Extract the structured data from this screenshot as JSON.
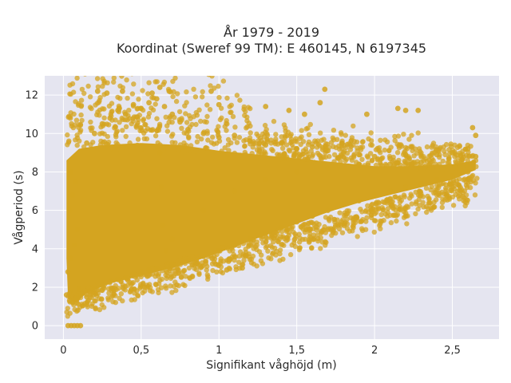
{
  "chart_data": {
    "type": "scatter",
    "title": [
      "År 1979 - 2019",
      "Koordinat (Sweref 99 TM): E 460145, N 6197345"
    ],
    "xlabel": "Signifikant våghöjd (m)",
    "ylabel": "Vågperiod (s)",
    "xlim": [
      -0.12,
      2.8
    ],
    "ylim": [
      -0.7,
      13.0
    ],
    "xticks": [
      0,
      0.5,
      1,
      1.5,
      2,
      2.5
    ],
    "xtick_labels": [
      "0",
      "0,5",
      "1",
      "1,5",
      "2",
      "2,5"
    ],
    "yticks": [
      0,
      2,
      4,
      6,
      8,
      10,
      12
    ],
    "ytick_labels": [
      "0",
      "2",
      "4",
      "6",
      "8",
      "10",
      "12"
    ],
    "grid": true,
    "colors": {
      "marker": "#D4A420",
      "plot_bg": "#E5E5F0",
      "grid": "#ffffff"
    },
    "series": [
      {
        "values": [
          [
            0.03,
            0
          ],
          [
            0.05,
            0
          ],
          [
            0.07,
            0
          ],
          [
            0.09,
            0
          ],
          [
            0.11,
            0
          ],
          [
            0.02,
            1.6
          ],
          [
            0.04,
            1.3
          ],
          [
            0.06,
            1.2
          ],
          [
            0.08,
            1.4
          ],
          [
            0.1,
            1.9
          ],
          [
            0.03,
            2.8
          ],
          [
            0.05,
            3.5
          ],
          [
            0.07,
            4.2
          ],
          [
            0.09,
            5.0
          ],
          [
            0.04,
            6.0
          ],
          [
            0.06,
            6.8
          ],
          [
            0.08,
            7.5
          ],
          [
            0.05,
            8.0
          ],
          [
            0.15,
            1.5
          ],
          [
            0.2,
            1.9
          ],
          [
            0.25,
            2.1
          ],
          [
            0.3,
            2.3
          ],
          [
            0.35,
            2.4
          ],
          [
            0.4,
            2.5
          ],
          [
            0.45,
            2.7
          ],
          [
            0.5,
            2.8
          ],
          [
            0.55,
            2.9
          ],
          [
            0.6,
            3.0
          ],
          [
            0.7,
            3.2
          ],
          [
            0.8,
            3.4
          ],
          [
            0.9,
            3.6
          ],
          [
            1.0,
            3.9
          ],
          [
            1.1,
            4.2
          ],
          [
            1.2,
            4.5
          ],
          [
            1.3,
            4.8
          ],
          [
            1.4,
            5.1
          ],
          [
            1.5,
            5.4
          ],
          [
            1.6,
            5.7
          ],
          [
            1.7,
            6.0
          ],
          [
            1.8,
            6.3
          ],
          [
            1.9,
            6.5
          ],
          [
            2.0,
            6.8
          ],
          [
            2.1,
            7.0
          ],
          [
            2.2,
            7.2
          ],
          [
            2.3,
            7.4
          ],
          [
            2.4,
            7.6
          ],
          [
            2.5,
            7.8
          ],
          [
            2.6,
            8.0
          ],
          [
            0.15,
            9.5
          ],
          [
            0.2,
            10.0
          ],
          [
            0.25,
            10.5
          ],
          [
            0.3,
            10.8
          ],
          [
            0.35,
            11.2
          ],
          [
            0.4,
            11.0
          ],
          [
            0.45,
            11.5
          ],
          [
            0.5,
            11.3
          ],
          [
            0.55,
            11.6
          ],
          [
            0.6,
            11.8
          ],
          [
            0.65,
            11.4
          ],
          [
            0.7,
            11.0
          ],
          [
            0.75,
            10.6
          ],
          [
            0.8,
            10.2
          ],
          [
            0.9,
            10.0
          ],
          [
            1.0,
            9.8
          ],
          [
            1.1,
            9.9
          ],
          [
            1.2,
            9.6
          ],
          [
            1.3,
            9.4
          ],
          [
            1.4,
            9.5
          ],
          [
            1.5,
            9.2
          ],
          [
            1.6,
            9.3
          ],
          [
            1.7,
            9.1
          ],
          [
            1.8,
            9.0
          ],
          [
            1.9,
            8.9
          ],
          [
            2.0,
            8.8
          ],
          [
            2.1,
            8.7
          ],
          [
            2.2,
            8.9
          ],
          [
            2.3,
            8.8
          ],
          [
            2.4,
            8.9
          ],
          [
            2.5,
            9.0
          ],
          [
            2.6,
            9.2
          ],
          [
            2.65,
            8.8
          ],
          [
            2.65,
            9.9
          ],
          [
            2.63,
            10.3
          ],
          [
            0.22,
            12.2
          ],
          [
            0.28,
            12.1
          ],
          [
            0.38,
            12.2
          ],
          [
            0.57,
            12.1
          ],
          [
            0.62,
            12.4
          ],
          [
            0.68,
            12.2
          ],
          [
            0.95,
            12.2
          ],
          [
            1.0,
            11.5
          ],
          [
            1.3,
            11.4
          ],
          [
            1.45,
            11.2
          ],
          [
            1.55,
            11.0
          ],
          [
            1.68,
            12.3
          ],
          [
            1.65,
            11.6
          ],
          [
            1.95,
            11.0
          ],
          [
            2.15,
            11.3
          ],
          [
            2.2,
            11.2
          ],
          [
            2.28,
            11.2
          ],
          [
            0.62,
            9.0
          ],
          [
            0.63,
            7.2
          ],
          [
            0.64,
            5.2
          ],
          [
            0.66,
            3.9
          ],
          [
            0.7,
            4.5
          ],
          [
            0.9,
            6.0
          ],
          [
            1.1,
            7.0
          ],
          [
            1.3,
            7.6
          ],
          [
            1.5,
            8.0
          ],
          [
            1.7,
            8.2
          ],
          [
            1.9,
            8.4
          ],
          [
            2.1,
            8.4
          ],
          [
            2.3,
            8.5
          ],
          [
            1.15,
            3.0
          ],
          [
            1.05,
            2.9
          ],
          [
            0.98,
            3.2
          ]
        ]
      }
    ]
  }
}
